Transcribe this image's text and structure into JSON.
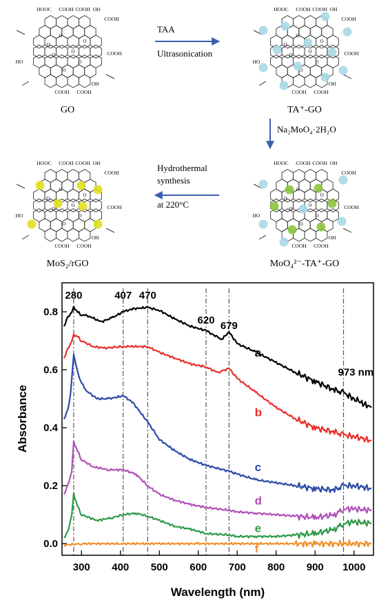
{
  "scheme": {
    "labels": {
      "go": "GO",
      "ta_go": "TA⁺-GO",
      "moo4_ta_go": "MoO₄²⁻-TA⁺-GO",
      "mos2_rgo": "MoS₂/rGO"
    },
    "steps": {
      "step1_top": "TAA",
      "step1_bottom": "Ultrasonication",
      "step2": "Na₂MoO₄·2H₂O",
      "step3_line1": "Hydrothermal",
      "step3_line2": "synthesis",
      "step3_line3": "at 220°C"
    },
    "group_labels": {
      "cooh": "COOH",
      "hooc": "HOOC",
      "oh": "OH",
      "ho": "HO",
      "o": "O"
    },
    "colors": {
      "arrow": "#3a5fb0",
      "ta_dot": "#a9d8e6",
      "moo4_dot": "#8cc43c",
      "mos2_dot": "#e0e020"
    }
  },
  "chart_data": {
    "type": "line",
    "xlabel": "Wavelength (nm)",
    "ylabel": "Absorbance",
    "xlim": [
      250,
      1050
    ],
    "ylim": [
      -0.04,
      0.9
    ],
    "xticks": [
      300,
      400,
      500,
      600,
      700,
      800,
      900,
      1000
    ],
    "yticks": [
      0.0,
      0.2,
      0.4,
      0.6,
      0.8
    ],
    "ytick_labels": [
      "0.0",
      "0.2",
      "0.4",
      "0.6",
      "0.8"
    ],
    "grid": false,
    "reference_lines": [
      280,
      407,
      470,
      620,
      679,
      973
    ],
    "peak_labels": [
      {
        "text": "280",
        "x": 280,
        "y": 0.845
      },
      {
        "text": "407",
        "x": 407,
        "y": 0.845
      },
      {
        "text": "470",
        "x": 470,
        "y": 0.845
      },
      {
        "text": "620",
        "x": 620,
        "y": 0.76
      },
      {
        "text": "679",
        "x": 679,
        "y": 0.74
      },
      {
        "text": "973 nm",
        "x": 973,
        "y": 0.58
      }
    ],
    "series": [
      {
        "name": "a",
        "color": "#000000",
        "label_x": 745,
        "label_y": 0.645,
        "x": [
          255,
          265,
          275,
          280,
          290,
          300,
          320,
          350,
          380,
          407,
          430,
          470,
          500,
          540,
          580,
          620,
          640,
          660,
          679,
          700,
          750,
          800,
          850,
          900,
          950,
          973,
          1000,
          1020,
          1045
        ],
        "y": [
          0.75,
          0.78,
          0.8,
          0.815,
          0.8,
          0.79,
          0.785,
          0.765,
          0.78,
          0.8,
          0.81,
          0.815,
          0.805,
          0.775,
          0.75,
          0.735,
          0.72,
          0.705,
          0.73,
          0.69,
          0.66,
          0.625,
          0.59,
          0.56,
          0.53,
          0.52,
          0.5,
          0.485,
          0.47
        ]
      },
      {
        "name": "b",
        "color": "#e8302a",
        "label_x": 745,
        "label_y": 0.44,
        "x": [
          255,
          265,
          275,
          280,
          290,
          300,
          330,
          360,
          407,
          430,
          470,
          500,
          540,
          580,
          620,
          650,
          679,
          700,
          750,
          800,
          850,
          900,
          950,
          973,
          1000,
          1045
        ],
        "y": [
          0.64,
          0.67,
          0.7,
          0.72,
          0.715,
          0.7,
          0.68,
          0.675,
          0.68,
          0.68,
          0.68,
          0.66,
          0.64,
          0.62,
          0.61,
          0.59,
          0.605,
          0.57,
          0.52,
          0.47,
          0.43,
          0.4,
          0.385,
          0.375,
          0.37,
          0.355
        ]
      },
      {
        "name": "c",
        "color": "#2a4aa8",
        "label_x": 745,
        "label_y": 0.25,
        "x": [
          255,
          265,
          272,
          280,
          285,
          295,
          310,
          340,
          370,
          407,
          430,
          470,
          500,
          540,
          580,
          620,
          679,
          700,
          750,
          800,
          850,
          900,
          950,
          973,
          1000,
          1045
        ],
        "y": [
          0.43,
          0.46,
          0.52,
          0.65,
          0.62,
          0.57,
          0.53,
          0.5,
          0.5,
          0.51,
          0.49,
          0.42,
          0.36,
          0.32,
          0.29,
          0.27,
          0.25,
          0.24,
          0.22,
          0.21,
          0.2,
          0.19,
          0.185,
          0.2,
          0.2,
          0.19
        ]
      },
      {
        "name": "d",
        "color": "#b050b8",
        "label_x": 745,
        "label_y": 0.135,
        "x": [
          255,
          265,
          275,
          280,
          290,
          300,
          330,
          370,
          407,
          440,
          470,
          500,
          540,
          580,
          620,
          679,
          700,
          750,
          800,
          850,
          900,
          950,
          973,
          1000,
          1045
        ],
        "y": [
          0.17,
          0.2,
          0.25,
          0.35,
          0.32,
          0.29,
          0.265,
          0.255,
          0.255,
          0.24,
          0.2,
          0.17,
          0.15,
          0.135,
          0.125,
          0.115,
          0.11,
          0.105,
          0.1,
          0.095,
          0.09,
          0.1,
          0.12,
          0.12,
          0.115
        ]
      },
      {
        "name": "e",
        "color": "#2e9a48",
        "label_x": 745,
        "label_y": 0.04,
        "x": [
          255,
          265,
          275,
          280,
          290,
          300,
          340,
          380,
          407,
          440,
          470,
          500,
          540,
          580,
          620,
          679,
          700,
          750,
          800,
          850,
          900,
          950,
          973,
          1000,
          1045
        ],
        "y": [
          0.02,
          0.04,
          0.1,
          0.17,
          0.13,
          0.1,
          0.08,
          0.09,
          0.1,
          0.105,
          0.095,
          0.08,
          0.06,
          0.05,
          0.035,
          0.03,
          0.025,
          0.025,
          0.025,
          0.03,
          0.035,
          0.05,
          0.07,
          0.075,
          0.07
        ]
      },
      {
        "name": "f",
        "color": "#f0902a",
        "label_x": 745,
        "label_y": -0.03,
        "x": [
          255,
          300,
          400,
          500,
          600,
          700,
          800,
          900,
          1000,
          1045
        ],
        "y": [
          -0.005,
          0.0,
          0.0,
          0.0,
          0.0,
          0.0,
          0.0,
          0.0,
          0.0,
          0.0
        ]
      }
    ]
  }
}
